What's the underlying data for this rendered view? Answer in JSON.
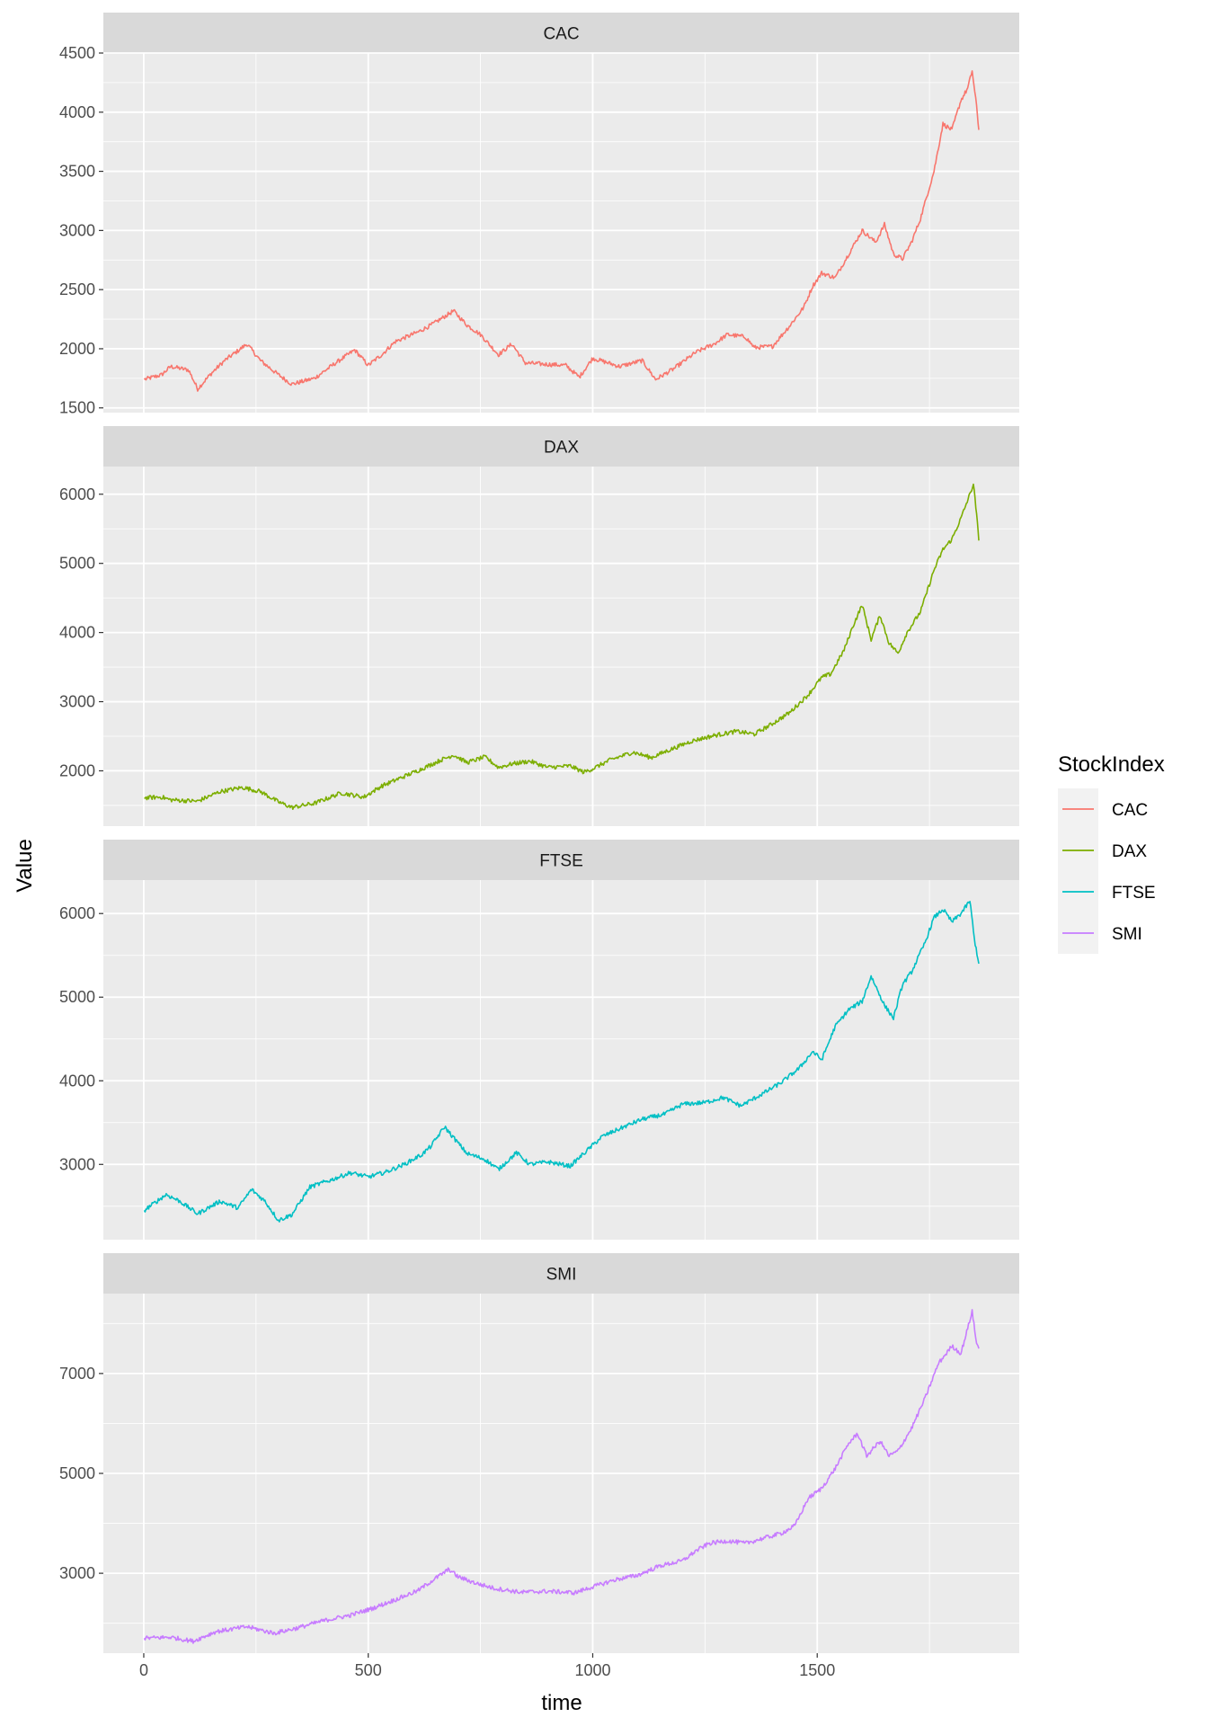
{
  "chart_data": {
    "type": "line",
    "facet": "vertical",
    "xlabel": "time",
    "ylabel": "Value",
    "x_range": [
      1,
      1860
    ],
    "x_ticks": [
      0,
      500,
      1000,
      1500
    ],
    "legend": {
      "title": "StockIndex",
      "placement": "right",
      "entries": [
        "CAC",
        "DAX",
        "FTSE",
        "SMI"
      ]
    },
    "colors": {
      "CAC": "#F8766D",
      "DAX": "#7CAE00",
      "FTSE": "#00BFC4",
      "SMI": "#C77CFF"
    },
    "panel_background": "#EBEBEB",
    "strip_background": "#D9D9D9",
    "grid": true,
    "panels": [
      {
        "name": "CAC",
        "ylim": [
          1460,
          4500
        ],
        "y_ticks": [
          1500,
          2000,
          2500,
          3000,
          3500,
          4000,
          4500
        ],
        "keypoints": [
          [
            1,
            1740
          ],
          [
            40,
            1780
          ],
          [
            60,
            1850
          ],
          [
            100,
            1820
          ],
          [
            120,
            1660
          ],
          [
            150,
            1790
          ],
          [
            180,
            1900
          ],
          [
            230,
            2040
          ],
          [
            260,
            1900
          ],
          [
            300,
            1780
          ],
          [
            330,
            1700
          ],
          [
            380,
            1750
          ],
          [
            420,
            1860
          ],
          [
            470,
            1990
          ],
          [
            500,
            1860
          ],
          [
            530,
            1950
          ],
          [
            560,
            2060
          ],
          [
            610,
            2140
          ],
          [
            640,
            2200
          ],
          [
            690,
            2320
          ],
          [
            720,
            2200
          ],
          [
            750,
            2120
          ],
          [
            790,
            1950
          ],
          [
            820,
            2040
          ],
          [
            850,
            1880
          ],
          [
            890,
            1870
          ],
          [
            940,
            1860
          ],
          [
            970,
            1760
          ],
          [
            1000,
            1920
          ],
          [
            1060,
            1850
          ],
          [
            1110,
            1900
          ],
          [
            1140,
            1740
          ],
          [
            1180,
            1830
          ],
          [
            1230,
            1970
          ],
          [
            1270,
            2040
          ],
          [
            1300,
            2120
          ],
          [
            1340,
            2100
          ],
          [
            1360,
            2010
          ],
          [
            1400,
            2020
          ],
          [
            1440,
            2200
          ],
          [
            1470,
            2350
          ],
          [
            1490,
            2530
          ],
          [
            1510,
            2640
          ],
          [
            1540,
            2600
          ],
          [
            1570,
            2800
          ],
          [
            1600,
            3000
          ],
          [
            1630,
            2900
          ],
          [
            1650,
            3050
          ],
          [
            1670,
            2800
          ],
          [
            1690,
            2760
          ],
          [
            1710,
            2900
          ],
          [
            1730,
            3100
          ],
          [
            1760,
            3500
          ],
          [
            1780,
            3900
          ],
          [
            1800,
            3850
          ],
          [
            1820,
            4100
          ],
          [
            1835,
            4200
          ],
          [
            1845,
            4350
          ],
          [
            1855,
            4050
          ],
          [
            1860,
            3850
          ]
        ]
      },
      {
        "name": "DAX",
        "ylim": [
          1200,
          6400
        ],
        "y_ticks": [
          2000,
          3000,
          4000,
          5000,
          6000
        ],
        "keypoints": [
          [
            1,
            1610
          ],
          [
            40,
            1620
          ],
          [
            60,
            1580
          ],
          [
            120,
            1560
          ],
          [
            170,
            1700
          ],
          [
            220,
            1760
          ],
          [
            260,
            1700
          ],
          [
            300,
            1550
          ],
          [
            330,
            1470
          ],
          [
            380,
            1530
          ],
          [
            440,
            1680
          ],
          [
            490,
            1620
          ],
          [
            530,
            1780
          ],
          [
            580,
            1920
          ],
          [
            620,
            2030
          ],
          [
            660,
            2150
          ],
          [
            690,
            2230
          ],
          [
            720,
            2120
          ],
          [
            760,
            2200
          ],
          [
            790,
            2050
          ],
          [
            820,
            2100
          ],
          [
            860,
            2140
          ],
          [
            900,
            2050
          ],
          [
            950,
            2070
          ],
          [
            980,
            1980
          ],
          [
            1000,
            2030
          ],
          [
            1040,
            2160
          ],
          [
            1090,
            2270
          ],
          [
            1130,
            2190
          ],
          [
            1170,
            2300
          ],
          [
            1220,
            2430
          ],
          [
            1270,
            2510
          ],
          [
            1320,
            2570
          ],
          [
            1360,
            2530
          ],
          [
            1400,
            2680
          ],
          [
            1440,
            2850
          ],
          [
            1480,
            3100
          ],
          [
            1510,
            3350
          ],
          [
            1530,
            3400
          ],
          [
            1560,
            3750
          ],
          [
            1580,
            4100
          ],
          [
            1600,
            4400
          ],
          [
            1620,
            3900
          ],
          [
            1640,
            4250
          ],
          [
            1660,
            3850
          ],
          [
            1680,
            3700
          ],
          [
            1700,
            4000
          ],
          [
            1730,
            4300
          ],
          [
            1760,
            4900
          ],
          [
            1780,
            5200
          ],
          [
            1800,
            5350
          ],
          [
            1820,
            5650
          ],
          [
            1840,
            6000
          ],
          [
            1848,
            6150
          ],
          [
            1855,
            5700
          ],
          [
            1860,
            5330
          ]
        ]
      },
      {
        "name": "FTSE",
        "ylim": [
          2100,
          6400
        ],
        "y_ticks": [
          3000,
          4000,
          5000,
          6000
        ],
        "keypoints": [
          [
            1,
            2450
          ],
          [
            50,
            2640
          ],
          [
            80,
            2560
          ],
          [
            120,
            2410
          ],
          [
            170,
            2560
          ],
          [
            210,
            2480
          ],
          [
            240,
            2700
          ],
          [
            270,
            2560
          ],
          [
            300,
            2330
          ],
          [
            330,
            2400
          ],
          [
            370,
            2730
          ],
          [
            420,
            2820
          ],
          [
            460,
            2900
          ],
          [
            500,
            2850
          ],
          [
            540,
            2910
          ],
          [
            580,
            3000
          ],
          [
            620,
            3120
          ],
          [
            640,
            3220
          ],
          [
            670,
            3450
          ],
          [
            690,
            3320
          ],
          [
            720,
            3130
          ],
          [
            760,
            3060
          ],
          [
            790,
            2940
          ],
          [
            830,
            3140
          ],
          [
            860,
            3000
          ],
          [
            900,
            3030
          ],
          [
            950,
            2980
          ],
          [
            980,
            3130
          ],
          [
            1020,
            3330
          ],
          [
            1070,
            3450
          ],
          [
            1110,
            3540
          ],
          [
            1160,
            3600
          ],
          [
            1200,
            3720
          ],
          [
            1250,
            3740
          ],
          [
            1290,
            3800
          ],
          [
            1330,
            3700
          ],
          [
            1380,
            3850
          ],
          [
            1420,
            3980
          ],
          [
            1460,
            4150
          ],
          [
            1490,
            4350
          ],
          [
            1510,
            4250
          ],
          [
            1540,
            4650
          ],
          [
            1570,
            4850
          ],
          [
            1600,
            4950
          ],
          [
            1620,
            5250
          ],
          [
            1650,
            4900
          ],
          [
            1670,
            4750
          ],
          [
            1690,
            5150
          ],
          [
            1710,
            5300
          ],
          [
            1740,
            5650
          ],
          [
            1760,
            5950
          ],
          [
            1780,
            6050
          ],
          [
            1800,
            5900
          ],
          [
            1820,
            6000
          ],
          [
            1840,
            6150
          ],
          [
            1850,
            5700
          ],
          [
            1860,
            5400
          ]
        ]
      },
      {
        "name": "SMI",
        "ylim": [
          1400,
          8600
        ],
        "y_ticks": [
          3000,
          5000,
          7000
        ],
        "keypoints": [
          [
            1,
            1700
          ],
          [
            60,
            1720
          ],
          [
            110,
            1640
          ],
          [
            160,
            1830
          ],
          [
            230,
            1930
          ],
          [
            290,
            1800
          ],
          [
            340,
            1900
          ],
          [
            400,
            2050
          ],
          [
            460,
            2160
          ],
          [
            510,
            2300
          ],
          [
            560,
            2470
          ],
          [
            610,
            2650
          ],
          [
            650,
            2900
          ],
          [
            680,
            3080
          ],
          [
            700,
            2930
          ],
          [
            740,
            2800
          ],
          [
            780,
            2700
          ],
          [
            840,
            2620
          ],
          [
            900,
            2640
          ],
          [
            960,
            2610
          ],
          [
            990,
            2700
          ],
          [
            1050,
            2870
          ],
          [
            1100,
            2960
          ],
          [
            1150,
            3150
          ],
          [
            1200,
            3250
          ],
          [
            1230,
            3450
          ],
          [
            1260,
            3600
          ],
          [
            1300,
            3650
          ],
          [
            1340,
            3600
          ],
          [
            1380,
            3700
          ],
          [
            1420,
            3800
          ],
          [
            1450,
            3950
          ],
          [
            1480,
            4500
          ],
          [
            1510,
            4700
          ],
          [
            1540,
            5100
          ],
          [
            1570,
            5600
          ],
          [
            1590,
            5800
          ],
          [
            1610,
            5350
          ],
          [
            1640,
            5650
          ],
          [
            1660,
            5350
          ],
          [
            1680,
            5450
          ],
          [
            1710,
            5900
          ],
          [
            1740,
            6500
          ],
          [
            1770,
            7200
          ],
          [
            1800,
            7550
          ],
          [
            1820,
            7400
          ],
          [
            1835,
            7900
          ],
          [
            1845,
            8250
          ],
          [
            1855,
            7600
          ],
          [
            1860,
            7500
          ]
        ]
      }
    ]
  }
}
